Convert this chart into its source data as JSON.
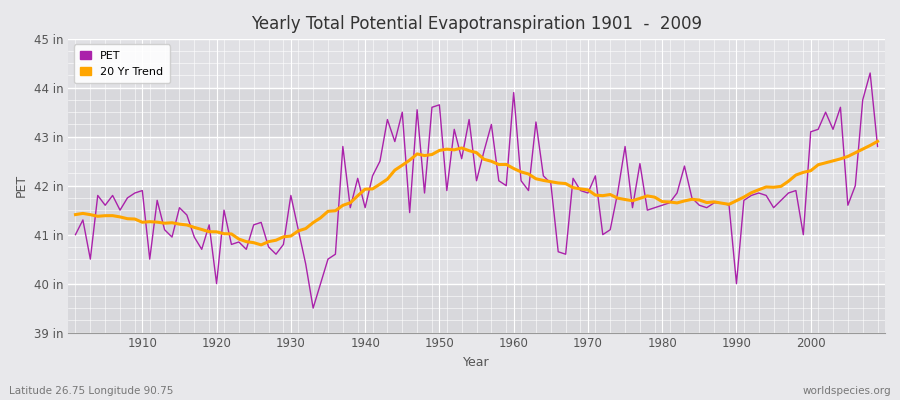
{
  "title": "Yearly Total Potential Evapotranspiration 1901  -  2009",
  "xlabel": "Year",
  "ylabel": "PET",
  "subtitle_left": "Latitude 26.75 Longitude 90.75",
  "subtitle_right": "worldspecies.org",
  "pet_color": "#aa22aa",
  "trend_color": "#FFA500",
  "bg_color": "#e8e8eb",
  "plot_bg_color": "#e0e0e4",
  "years": [
    1901,
    1902,
    1903,
    1904,
    1905,
    1906,
    1907,
    1908,
    1909,
    1910,
    1911,
    1912,
    1913,
    1914,
    1915,
    1916,
    1917,
    1918,
    1919,
    1920,
    1921,
    1922,
    1923,
    1924,
    1925,
    1926,
    1927,
    1928,
    1929,
    1930,
    1931,
    1932,
    1933,
    1934,
    1935,
    1936,
    1937,
    1938,
    1939,
    1940,
    1941,
    1942,
    1943,
    1944,
    1945,
    1946,
    1947,
    1948,
    1949,
    1950,
    1951,
    1952,
    1953,
    1954,
    1955,
    1956,
    1957,
    1958,
    1959,
    1960,
    1961,
    1962,
    1963,
    1964,
    1965,
    1966,
    1967,
    1968,
    1969,
    1970,
    1971,
    1972,
    1973,
    1974,
    1975,
    1976,
    1977,
    1978,
    1979,
    1980,
    1981,
    1982,
    1983,
    1984,
    1985,
    1986,
    1987,
    1988,
    1989,
    1990,
    1991,
    1992,
    1993,
    1994,
    1995,
    1996,
    1997,
    1998,
    1999,
    2000,
    2001,
    2002,
    2003,
    2004,
    2005,
    2006,
    2007,
    2008,
    2009
  ],
  "pet_values": [
    41.0,
    41.3,
    40.5,
    41.8,
    41.6,
    41.8,
    41.5,
    41.75,
    41.85,
    41.9,
    40.5,
    41.7,
    41.1,
    40.95,
    41.55,
    41.4,
    40.95,
    40.7,
    41.2,
    40.0,
    41.5,
    40.8,
    40.85,
    40.7,
    41.2,
    41.25,
    40.75,
    40.6,
    40.8,
    41.8,
    41.1,
    40.4,
    39.5,
    40.0,
    40.5,
    40.6,
    42.8,
    41.55,
    42.15,
    41.55,
    42.2,
    42.5,
    43.35,
    42.9,
    43.5,
    41.45,
    43.55,
    41.85,
    43.6,
    43.65,
    41.9,
    43.15,
    42.55,
    43.35,
    42.1,
    42.7,
    43.25,
    42.1,
    42.0,
    43.9,
    42.1,
    41.9,
    43.3,
    42.2,
    42.05,
    40.65,
    40.6,
    42.15,
    41.9,
    41.85,
    42.2,
    41.0,
    41.1,
    41.85,
    42.8,
    41.55,
    42.45,
    41.5,
    41.55,
    41.6,
    41.65,
    41.85,
    42.4,
    41.75,
    41.6,
    41.55,
    41.65,
    41.65,
    41.6,
    40.0,
    41.7,
    41.8,
    41.85,
    41.8,
    41.55,
    41.7,
    41.85,
    41.9,
    41.0,
    43.1,
    43.15,
    43.5,
    43.15,
    43.6,
    41.6,
    42.0,
    43.75,
    44.3,
    42.8
  ],
  "ylim": [
    39.0,
    45.0
  ],
  "ytick_values": [
    39,
    40,
    41,
    42,
    43,
    44,
    45
  ],
  "xtick_values": [
    1910,
    1920,
    1930,
    1940,
    1950,
    1960,
    1970,
    1980,
    1990,
    2000
  ],
  "trend_window": 20
}
